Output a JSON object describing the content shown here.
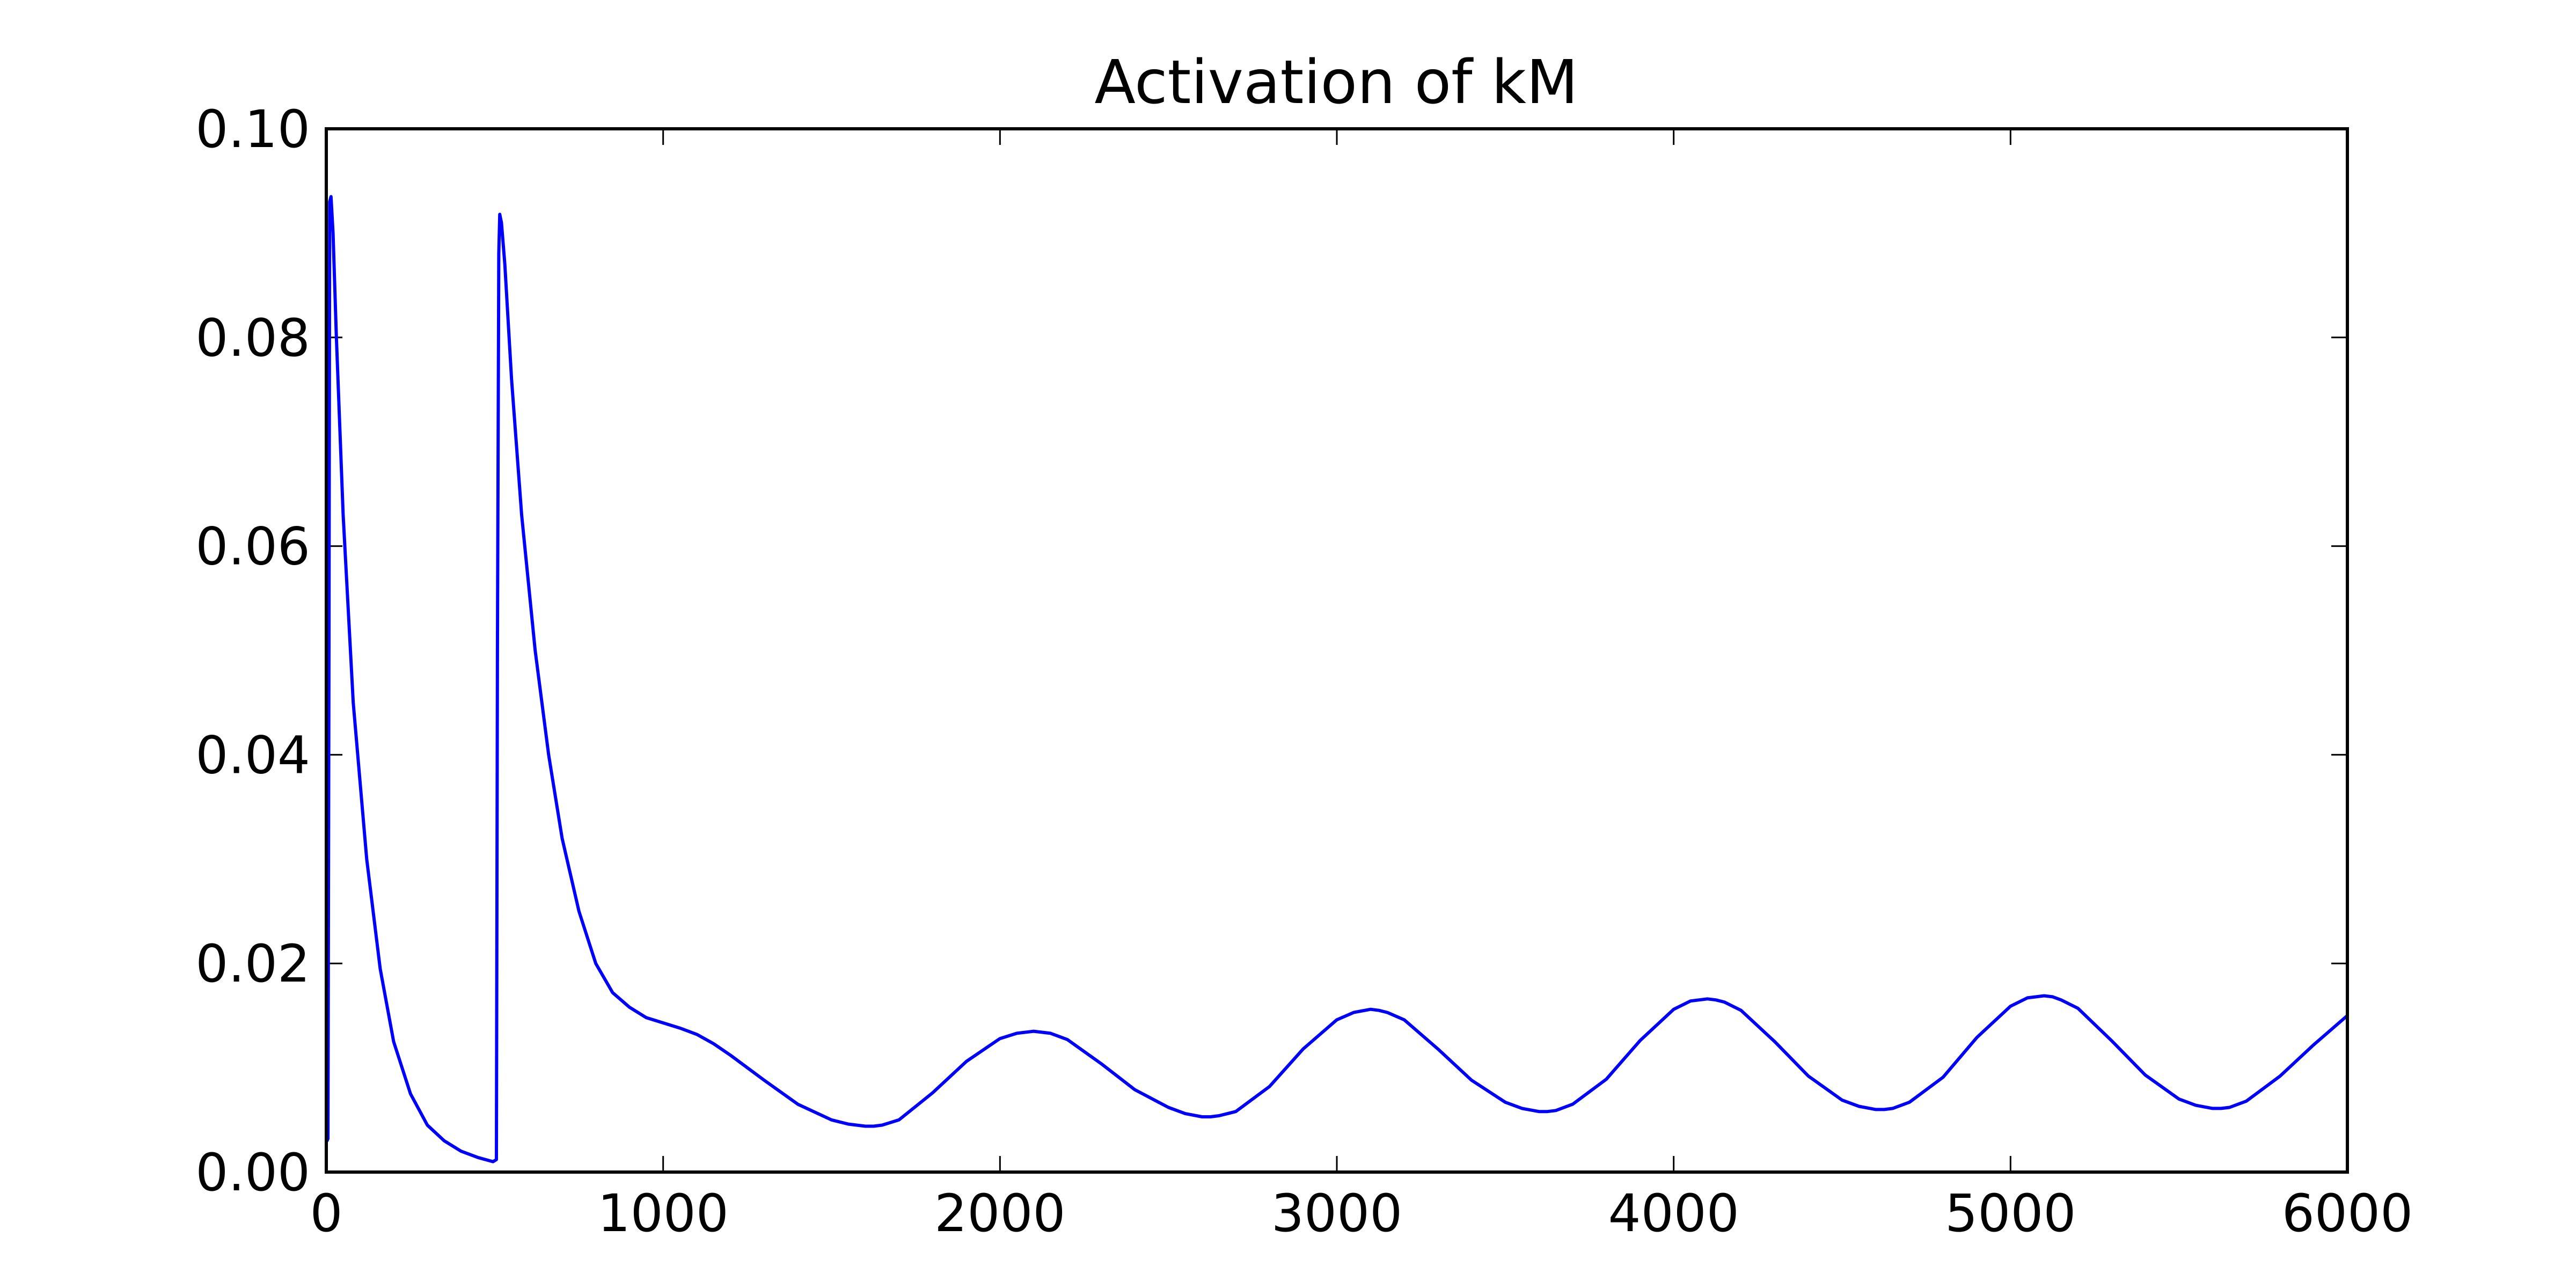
{
  "chart_data": {
    "type": "line",
    "title": "Activation of kM",
    "xlabel": "",
    "ylabel": "",
    "xlim": [
      0,
      6000
    ],
    "ylim": [
      0,
      0.1
    ],
    "xticks": [
      0,
      1000,
      2000,
      3000,
      4000,
      5000,
      6000
    ],
    "xtick_labels": [
      "0",
      "1000",
      "2000",
      "3000",
      "4000",
      "5000",
      "6000"
    ],
    "yticks": [
      0,
      0.02,
      0.04,
      0.06,
      0.08,
      0.1
    ],
    "ytick_labels": [
      "0.00",
      "0.02",
      "0.04",
      "0.06",
      "0.08",
      "0.10"
    ],
    "grid": false,
    "line_color": "#0000ff",
    "series": [
      {
        "x": [
          0,
          2,
          5,
          8,
          10,
          14,
          20,
          30,
          50,
          80,
          120,
          160,
          200,
          250,
          300,
          350,
          400,
          450,
          495,
          505,
          508,
          512,
          515,
          520,
          530,
          550,
          580,
          620,
          660,
          700,
          750,
          800,
          850,
          900,
          950,
          1000,
          1050,
          1100,
          1150,
          1200,
          1300,
          1400,
          1500,
          1550,
          1600,
          1625,
          1650,
          1700,
          1800,
          1900,
          2000,
          2050,
          2100,
          2125,
          2150,
          2200,
          2300,
          2400,
          2500,
          2550,
          2600,
          2625,
          2650,
          2700,
          2800,
          2900,
          3000,
          3050,
          3100,
          3125,
          3150,
          3200,
          3300,
          3400,
          3500,
          3550,
          3600,
          3625,
          3650,
          3700,
          3800,
          3900,
          4000,
          4050,
          4100,
          4125,
          4150,
          4200,
          4300,
          4400,
          4500,
          4550,
          4600,
          4625,
          4650,
          4700,
          4800,
          4900,
          5000,
          5050,
          5100,
          5125,
          5150,
          5200,
          5300,
          5400,
          5500,
          5550,
          5600,
          5625,
          5650,
          5700,
          5800,
          5900,
          6000
        ],
        "y": [
          0.003,
          0.003,
          0.0032,
          0.05,
          0.093,
          0.0935,
          0.09,
          0.08,
          0.063,
          0.045,
          0.03,
          0.0195,
          0.0125,
          0.0075,
          0.0045,
          0.003,
          0.002,
          0.0014,
          0.001,
          0.0012,
          0.05,
          0.088,
          0.0918,
          0.091,
          0.087,
          0.076,
          0.063,
          0.05,
          0.04,
          0.032,
          0.025,
          0.02,
          0.0172,
          0.0158,
          0.0148,
          0.0143,
          0.0138,
          0.0132,
          0.0123,
          0.0112,
          0.0088,
          0.0065,
          0.005,
          0.0046,
          0.0044,
          0.0044,
          0.0045,
          0.005,
          0.0076,
          0.0106,
          0.0128,
          0.0133,
          0.0135,
          0.0134,
          0.0133,
          0.0127,
          0.0104,
          0.0079,
          0.0062,
          0.0056,
          0.0053,
          0.0053,
          0.0054,
          0.0058,
          0.0082,
          0.0118,
          0.0146,
          0.0153,
          0.0156,
          0.0155,
          0.0153,
          0.0146,
          0.0118,
          0.0088,
          0.0067,
          0.0061,
          0.0058,
          0.0058,
          0.0059,
          0.0065,
          0.0089,
          0.0126,
          0.0156,
          0.0164,
          0.0166,
          0.0165,
          0.0163,
          0.0155,
          0.0125,
          0.0092,
          0.0069,
          0.0063,
          0.006,
          0.006,
          0.0061,
          0.0067,
          0.0091,
          0.0129,
          0.0159,
          0.0167,
          0.0169,
          0.0168,
          0.0165,
          0.0157,
          0.0126,
          0.0093,
          0.007,
          0.0064,
          0.0061,
          0.0061,
          0.0062,
          0.0068,
          0.0092,
          0.0122,
          0.015
        ]
      }
    ]
  }
}
